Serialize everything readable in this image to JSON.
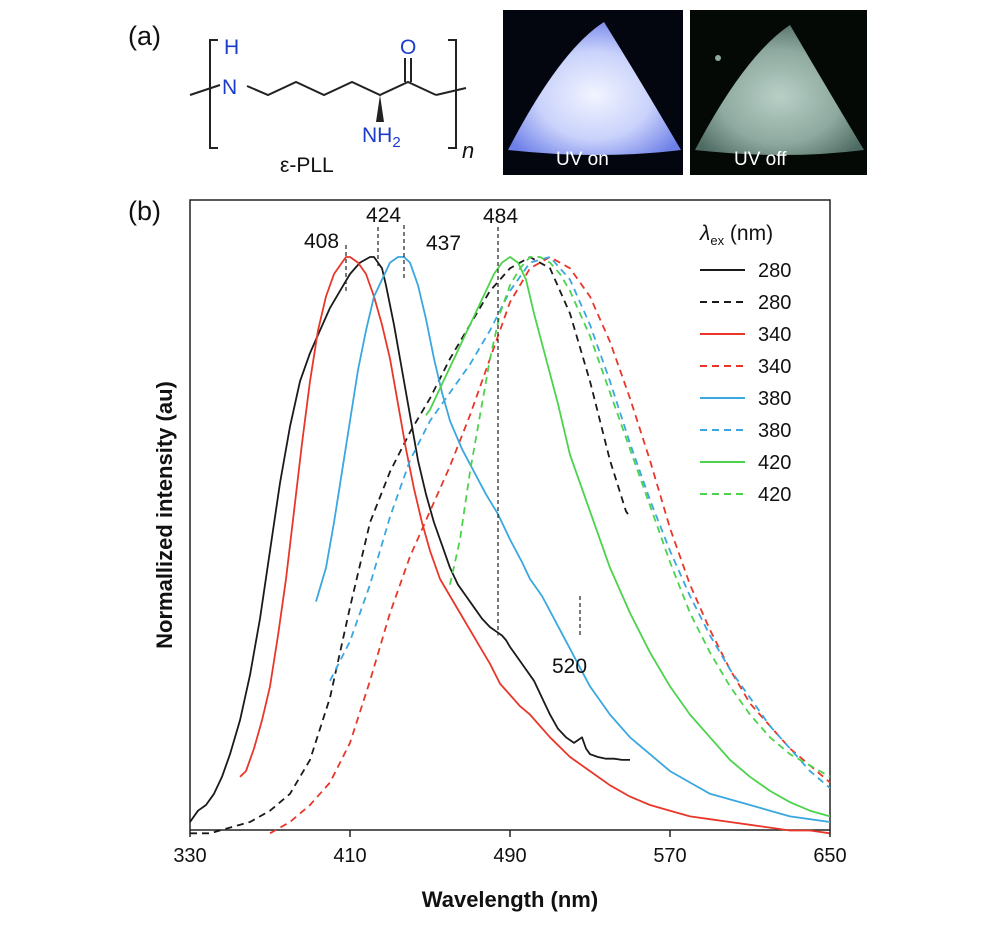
{
  "panel_a": {
    "label": "(a)",
    "molecule": {
      "nh": "H",
      "n": "N",
      "o": "O",
      "nh2": "NH",
      "nh2_sub": "2",
      "repeat": "n",
      "name": "ε-PLL"
    },
    "photos": [
      {
        "label": "UV on"
      },
      {
        "label": "UV off"
      }
    ]
  },
  "chart_data": {
    "type": "line",
    "panel_label": "(b)",
    "xlabel": "Wavelength (nm)",
    "ylabel": "Normallized intensity (au)",
    "xlim": [
      330,
      650
    ],
    "ylim": [
      0,
      1
    ],
    "xticks": [
      330,
      410,
      490,
      570,
      650
    ],
    "xtick_labels": [
      "330",
      "410",
      "490",
      "570",
      "650"
    ],
    "grid": false,
    "legend": {
      "title_symbol": "λ",
      "title_sub": "ex",
      "title_unit": " (nm)",
      "position": "top-right",
      "entries": [
        {
          "label": "280",
          "color": "#1a1a1a",
          "dash": false
        },
        {
          "label": "280",
          "color": "#1a1a1a",
          "dash": true
        },
        {
          "label": "340",
          "color": "#e8372a",
          "dash": false
        },
        {
          "label": "340",
          "color": "#e8372a",
          "dash": true
        },
        {
          "label": "380",
          "color": "#3aa7e0",
          "dash": false
        },
        {
          "label": "380",
          "color": "#3aa7e0",
          "dash": true
        },
        {
          "label": "420",
          "color": "#4cd34c",
          "dash": false
        },
        {
          "label": "420",
          "color": "#4cd34c",
          "dash": true
        }
      ]
    },
    "annotations": [
      {
        "text": "408",
        "x": 408,
        "peak": 1.0
      },
      {
        "text": "424",
        "x": 424,
        "peak": 1.0
      },
      {
        "text": "437",
        "x": 437,
        "peak": 1.0
      },
      {
        "text": "484",
        "x": 484,
        "peak": 1.0
      },
      {
        "text": "520",
        "x": 525,
        "peak": 0.36
      }
    ],
    "series": [
      {
        "legend_label": "280",
        "color": "#1a1a1a",
        "dash": false,
        "x": [
          330,
          334,
          338,
          342,
          346,
          350,
          355,
          360,
          365,
          370,
          375,
          380,
          385,
          390,
          395,
          400,
          405,
          410,
          415,
          420,
          422,
          424,
          426,
          428,
          432,
          436,
          440,
          444,
          448,
          452,
          456,
          460,
          464,
          468,
          472,
          476,
          480,
          484,
          486,
          488,
          490,
          494,
          498,
          502,
          506,
          510,
          514,
          518,
          522,
          524,
          526,
          528,
          530,
          534,
          538,
          542,
          546,
          550
        ],
        "y": [
          0.0,
          0.02,
          0.03,
          0.05,
          0.08,
          0.12,
          0.18,
          0.26,
          0.36,
          0.48,
          0.6,
          0.7,
          0.78,
          0.83,
          0.87,
          0.91,
          0.94,
          0.97,
          0.99,
          1.0,
          1.0,
          0.99,
          0.98,
          0.95,
          0.88,
          0.8,
          0.72,
          0.64,
          0.58,
          0.53,
          0.49,
          0.45,
          0.42,
          0.4,
          0.38,
          0.36,
          0.345,
          0.335,
          0.33,
          0.322,
          0.31,
          0.29,
          0.27,
          0.25,
          0.22,
          0.19,
          0.165,
          0.15,
          0.14,
          0.145,
          0.15,
          0.13,
          0.12,
          0.115,
          0.112,
          0.112,
          0.11,
          0.11
        ]
      },
      {
        "legend_label": "280",
        "color": "#1a1a1a",
        "dash": true,
        "x": [
          330,
          340,
          350,
          360,
          370,
          380,
          390,
          400,
          410,
          420,
          430,
          440,
          450,
          460,
          470,
          480,
          490,
          500,
          510,
          520,
          530,
          540,
          548,
          550
        ],
        "y": [
          -0.02,
          -0.02,
          -0.01,
          0.0,
          0.02,
          0.05,
          0.11,
          0.22,
          0.38,
          0.53,
          0.62,
          0.69,
          0.75,
          0.82,
          0.88,
          0.94,
          0.98,
          1.0,
          0.98,
          0.9,
          0.78,
          0.64,
          0.55,
          0.54
        ]
      },
      {
        "legend_label": "340",
        "color": "#e8372a",
        "dash": false,
        "x": [
          355,
          358,
          362,
          366,
          370,
          374,
          378,
          382,
          386,
          390,
          394,
          398,
          402,
          406,
          408,
          410,
          414,
          418,
          422,
          426,
          430,
          434,
          438,
          442,
          446,
          450,
          455,
          460,
          465,
          470,
          475,
          480,
          485,
          490,
          495,
          500,
          510,
          520,
          530,
          540,
          550,
          560,
          570,
          580,
          590,
          600,
          610,
          620,
          630,
          640,
          650
        ],
        "y": [
          0.08,
          0.09,
          0.13,
          0.18,
          0.24,
          0.33,
          0.43,
          0.55,
          0.67,
          0.78,
          0.87,
          0.93,
          0.97,
          0.99,
          1.0,
          1.0,
          0.99,
          0.97,
          0.93,
          0.88,
          0.82,
          0.74,
          0.66,
          0.59,
          0.53,
          0.48,
          0.43,
          0.4,
          0.37,
          0.34,
          0.31,
          0.28,
          0.245,
          0.225,
          0.205,
          0.19,
          0.15,
          0.115,
          0.09,
          0.065,
          0.045,
          0.03,
          0.02,
          0.01,
          0.005,
          0.0,
          -0.005,
          -0.01,
          -0.015,
          -0.015,
          -0.02
        ]
      },
      {
        "legend_label": "340",
        "color": "#e8372a",
        "dash": true,
        "x": [
          370,
          380,
          390,
          400,
          410,
          420,
          430,
          440,
          450,
          460,
          470,
          480,
          490,
          500,
          510,
          520,
          530,
          540,
          550,
          560,
          570,
          580,
          590,
          600,
          610,
          620,
          630,
          640,
          650
        ],
        "y": [
          -0.02,
          0.0,
          0.03,
          0.07,
          0.14,
          0.25,
          0.37,
          0.47,
          0.55,
          0.63,
          0.72,
          0.82,
          0.92,
          0.98,
          1.0,
          0.98,
          0.93,
          0.85,
          0.75,
          0.64,
          0.52,
          0.42,
          0.34,
          0.27,
          0.21,
          0.17,
          0.13,
          0.1,
          0.07
        ]
      },
      {
        "legend_label": "380",
        "color": "#3aa7e0",
        "dash": false,
        "x": [
          393,
          398,
          402,
          406,
          410,
          414,
          418,
          422,
          426,
          430,
          434,
          437,
          440,
          444,
          448,
          452,
          456,
          460,
          466,
          472,
          478,
          484,
          490,
          496,
          500,
          506,
          512,
          518,
          524,
          530,
          540,
          550,
          560,
          570,
          580,
          590,
          600,
          610,
          620,
          630,
          640,
          650
        ],
        "y": [
          0.39,
          0.45,
          0.53,
          0.62,
          0.71,
          0.8,
          0.87,
          0.93,
          0.96,
          0.99,
          1.0,
          1.0,
          0.99,
          0.95,
          0.89,
          0.82,
          0.76,
          0.71,
          0.66,
          0.62,
          0.58,
          0.545,
          0.5,
          0.46,
          0.43,
          0.4,
          0.36,
          0.32,
          0.28,
          0.24,
          0.19,
          0.15,
          0.12,
          0.09,
          0.07,
          0.05,
          0.04,
          0.03,
          0.02,
          0.01,
          0.005,
          0.0
        ]
      },
      {
        "legend_label": "380",
        "color": "#3aa7e0",
        "dash": true,
        "x": [
          400,
          410,
          420,
          430,
          440,
          450,
          460,
          470,
          480,
          490,
          500,
          510,
          520,
          530,
          540,
          550,
          560,
          570,
          580,
          590,
          600,
          610,
          620,
          630,
          640,
          650
        ],
        "y": [
          0.25,
          0.32,
          0.42,
          0.54,
          0.64,
          0.71,
          0.76,
          0.81,
          0.87,
          0.94,
          0.99,
          1.0,
          0.96,
          0.88,
          0.78,
          0.67,
          0.57,
          0.48,
          0.4,
          0.33,
          0.27,
          0.22,
          0.17,
          0.13,
          0.09,
          0.06
        ]
      },
      {
        "legend_label": "420",
        "color": "#4cd34c",
        "dash": false,
        "x": [
          448,
          450,
          454,
          458,
          462,
          466,
          470,
          474,
          478,
          482,
          486,
          490,
          494,
          498,
          502,
          508,
          514,
          520,
          530,
          540,
          550,
          560,
          570,
          580,
          590,
          600,
          610,
          620,
          630,
          640,
          650
        ],
        "y": [
          0.72,
          0.73,
          0.76,
          0.79,
          0.82,
          0.85,
          0.88,
          0.91,
          0.94,
          0.97,
          0.99,
          1.0,
          0.99,
          0.96,
          0.9,
          0.82,
          0.74,
          0.65,
          0.55,
          0.45,
          0.37,
          0.3,
          0.24,
          0.19,
          0.15,
          0.11,
          0.08,
          0.055,
          0.035,
          0.02,
          0.01
        ]
      },
      {
        "legend_label": "420",
        "color": "#4cd34c",
        "dash": true,
        "x": [
          460,
          465,
          470,
          475,
          480,
          485,
          490,
          495,
          500,
          505,
          510,
          515,
          520,
          530,
          540,
          550,
          560,
          570,
          580,
          590,
          600,
          610,
          620,
          630,
          640,
          650
        ],
        "y": [
          0.42,
          0.5,
          0.62,
          0.72,
          0.82,
          0.9,
          0.95,
          0.98,
          1.0,
          1.0,
          0.99,
          0.97,
          0.94,
          0.86,
          0.76,
          0.66,
          0.56,
          0.46,
          0.37,
          0.3,
          0.24,
          0.19,
          0.15,
          0.12,
          0.1,
          0.08
        ]
      }
    ]
  }
}
